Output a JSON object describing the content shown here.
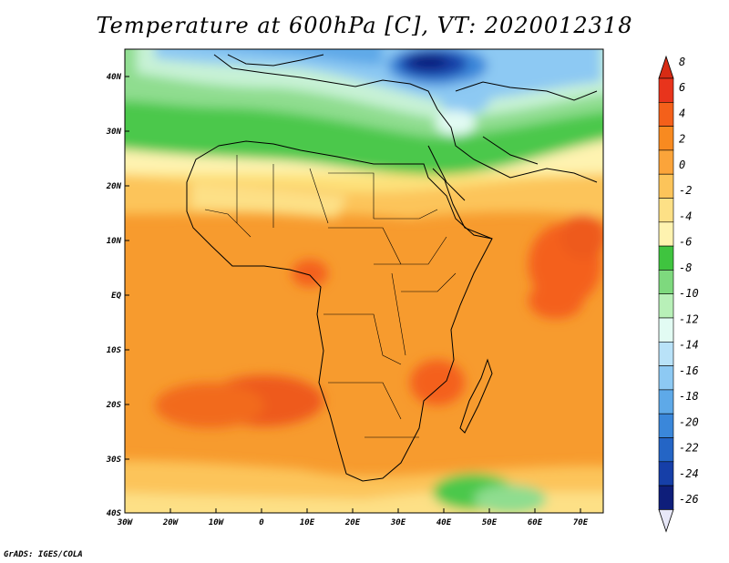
{
  "title": "Temperature at 600hPa [C], VT: 2020012318",
  "credit": "GrADS: IGES/COLA",
  "map": {
    "lon_ticks": [
      "30W",
      "20W",
      "10W",
      "0",
      "10E",
      "20E",
      "30E",
      "40E",
      "50E",
      "60E",
      "70E"
    ],
    "lat_ticks": [
      "40N",
      "30N",
      "20N",
      "10N",
      "EQ",
      "10S",
      "20S",
      "30S",
      "40S"
    ],
    "lon_range": [
      -30,
      75
    ],
    "lat_range": [
      -40,
      45
    ]
  },
  "colorbar": {
    "labels": [
      "8",
      "6",
      "4",
      "2",
      "0",
      "-2",
      "-4",
      "-6",
      "-8",
      "-10",
      "-12",
      "-14",
      "-16",
      "-18",
      "-20",
      "-22",
      "-24",
      "-26"
    ],
    "colors": [
      "#e8341c",
      "#f4601a",
      "#f88a20",
      "#fba43a",
      "#fcc45a",
      "#fde086",
      "#fef3b0",
      "#3fc43f",
      "#7ed97e",
      "#b8f0b8",
      "#e2fbf3",
      "#b9e2f8",
      "#8dc9f3",
      "#5ea9e8",
      "#3a87da",
      "#2465c5",
      "#163fa8",
      "#0e1e7a"
    ],
    "under_color": "#e8e8f8",
    "over_color": "#d72b14"
  },
  "legend_colors": {
    "ocean_warm": "#f79b2e",
    "land_warm": "#f6a12d",
    "hot": "#ee5a1a",
    "cool": "#fde27c",
    "green": "#4cc84c",
    "cold_blue": "#1a3fb0"
  }
}
